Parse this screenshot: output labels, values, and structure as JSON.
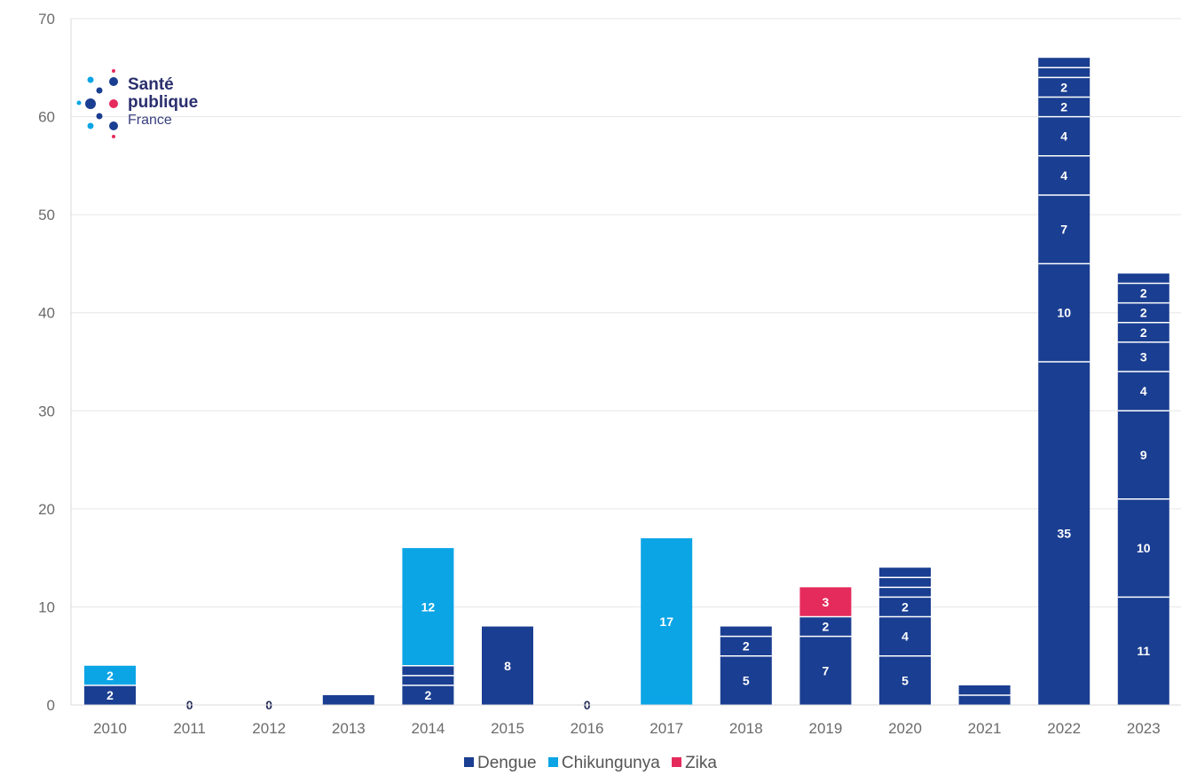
{
  "colors": {
    "dengue": "#1a3e91",
    "chikungunya": "#0ba5e6",
    "zika": "#e52b5c"
  },
  "logo": {
    "line1": "Santé",
    "line2": "publique",
    "line3": "France"
  },
  "chart_data": {
    "type": "bar",
    "stacked": true,
    "title": "",
    "xlabel": "",
    "ylabel": "",
    "ylim": [
      0,
      70
    ],
    "yticks": [
      0,
      10,
      20,
      30,
      40,
      50,
      60,
      70
    ],
    "grid": true,
    "legend": "bottom",
    "categories": [
      "2010",
      "2011",
      "2012",
      "2013",
      "2014",
      "2015",
      "2016",
      "2017",
      "2018",
      "2019",
      "2020",
      "2021",
      "2022",
      "2023"
    ],
    "zero_labels": [
      {
        "category": "2011",
        "label": "0"
      },
      {
        "category": "2012",
        "label": "0"
      },
      {
        "category": "2016",
        "label": "0"
      }
    ],
    "series": [
      {
        "name": "Dengue",
        "color_key": "dengue",
        "segments": [
          [
            2
          ],
          [],
          [],
          [
            1
          ],
          [
            2,
            1,
            1
          ],
          [
            8
          ],
          [],
          [],
          [
            5,
            2,
            1
          ],
          [
            7,
            2
          ],
          [
            5,
            4,
            2,
            1,
            1,
            1
          ],
          [
            1,
            1
          ],
          [
            35,
            10,
            7,
            4,
            4,
            2,
            2,
            1,
            1
          ],
          [
            11,
            10,
            9,
            4,
            3,
            2,
            2,
            2,
            1
          ]
        ],
        "labels": [
          [
            "2"
          ],
          [],
          [],
          [
            ""
          ],
          [
            "2",
            "",
            ""
          ],
          [
            "8"
          ],
          [],
          [],
          [
            "5",
            "2",
            ""
          ],
          [
            "7",
            "2"
          ],
          [
            "5",
            "4",
            "2",
            "",
            "",
            ""
          ],
          [
            "",
            ""
          ],
          [
            "35",
            "10",
            "7",
            "4",
            "4",
            "2",
            "2",
            "",
            ""
          ],
          [
            "11",
            "10",
            "9",
            "4",
            "3",
            "2",
            "2",
            "2",
            ""
          ]
        ]
      },
      {
        "name": "Chikungunya",
        "color_key": "chikungunya",
        "segments": [
          [
            2
          ],
          [],
          [],
          [],
          [
            12
          ],
          [],
          [],
          [
            17
          ],
          [],
          [],
          [],
          [],
          [],
          []
        ],
        "labels": [
          [
            "2"
          ],
          [],
          [],
          [],
          [
            "12"
          ],
          [],
          [],
          [
            "17"
          ],
          [],
          [],
          [],
          [],
          [],
          []
        ]
      },
      {
        "name": "Zika",
        "color_key": "zika",
        "segments": [
          [],
          [],
          [],
          [],
          [],
          [],
          [],
          [],
          [],
          [
            3
          ],
          [],
          [],
          [],
          []
        ],
        "labels": [
          [],
          [],
          [],
          [],
          [],
          [],
          [],
          [],
          [],
          [
            "3"
          ],
          [],
          [],
          [],
          []
        ]
      }
    ]
  }
}
